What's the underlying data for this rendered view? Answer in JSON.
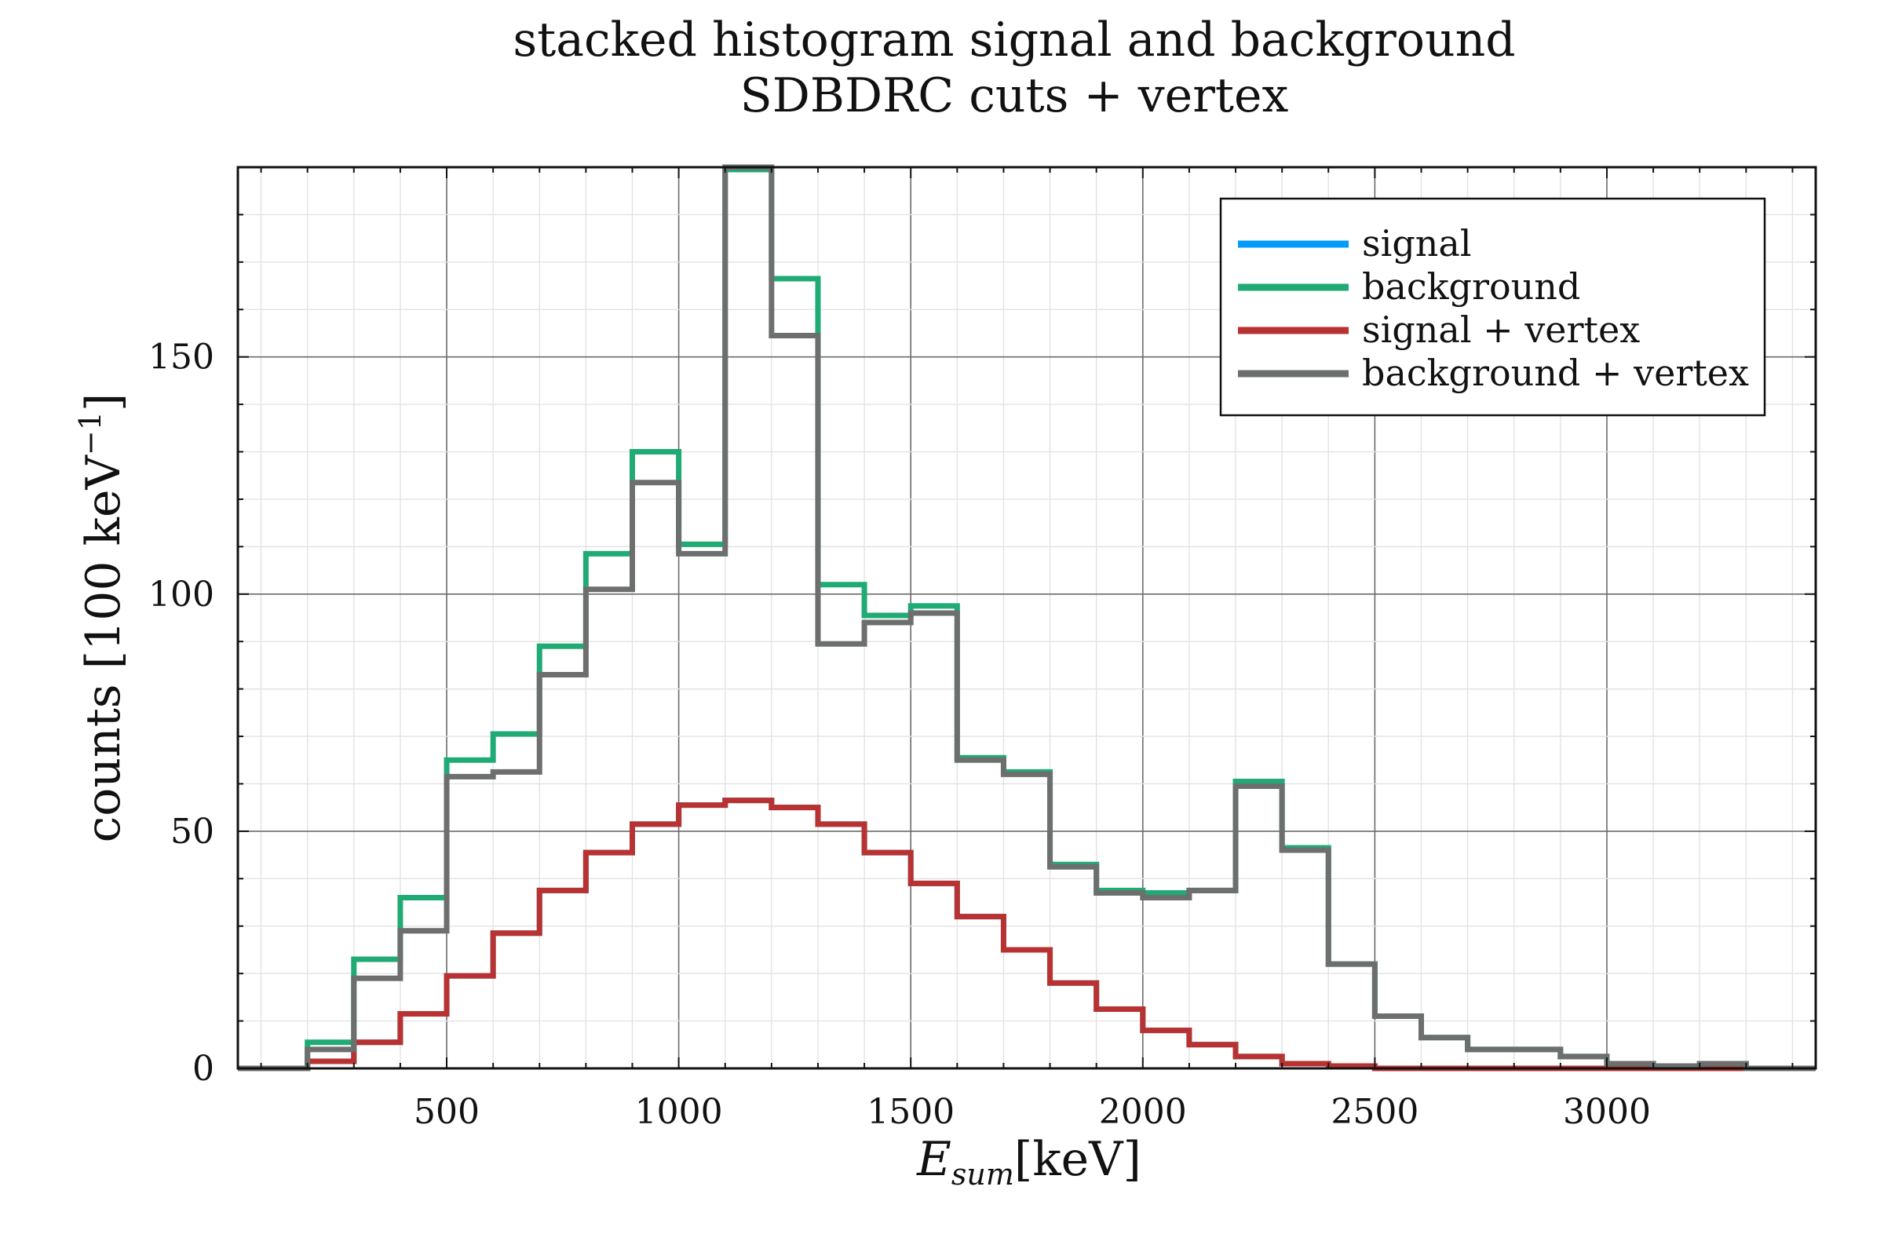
{
  "chart_data": {
    "type": "histogram-step",
    "title": [
      "stacked histogram signal and background",
      "SDBDRC cuts + vertex"
    ],
    "xlabel": {
      "symbol": "E",
      "subscript": "sum",
      "unit": "[keV]"
    },
    "ylabel": {
      "text": "counts [100 keV",
      "superscript": "−1",
      "close": "]"
    },
    "xlim": [
      50,
      3450
    ],
    "ylim": [
      0,
      190
    ],
    "xticks": [
      500,
      1000,
      1500,
      2000,
      2500,
      3000
    ],
    "yticks": [
      0,
      50,
      100,
      150
    ],
    "xtick_labels": [
      "500",
      "1000",
      "1500",
      "2000",
      "2500",
      "3000"
    ],
    "ytick_labels": [
      "0",
      "50",
      "100",
      "150"
    ],
    "x_minor_step": 100,
    "y_minor_step": 10,
    "grid": true,
    "legend_position": "top-right",
    "bin_edges": [
      50,
      100,
      200,
      300,
      400,
      500,
      600,
      700,
      800,
      900,
      1000,
      1100,
      1200,
      1300,
      1400,
      1500,
      1600,
      1700,
      1800,
      1900,
      2000,
      2100,
      2200,
      2300,
      2400,
      2500,
      2600,
      2700,
      2800,
      2900,
      3000,
      3100,
      3200,
      3300,
      3400,
      3450
    ],
    "series": [
      {
        "name": "signal",
        "color": "#009AFA",
        "values": [
          0,
          0,
          1.5,
          5.5,
          11.5,
          19.5,
          28.5,
          37.5,
          45.5,
          51.5,
          55.5,
          56.5,
          55,
          51.5,
          45.5,
          39,
          32,
          25,
          18,
          12.5,
          8,
          5,
          2.5,
          1,
          0.5,
          0,
          0,
          0,
          0,
          0,
          0,
          0,
          0,
          0,
          0
        ]
      },
      {
        "name": "background",
        "color": "#20AB75",
        "values": [
          0,
          0,
          5.5,
          23,
          36,
          65,
          70.5,
          89,
          108.5,
          130,
          110.5,
          189.5,
          166.5,
          102,
          95.5,
          97.5,
          65.5,
          62.5,
          43,
          37.5,
          37,
          37.5,
          60.5,
          46.5,
          22,
          11,
          6.5,
          4,
          4,
          2.5,
          1,
          0.5,
          1,
          0,
          0
        ]
      },
      {
        "name": "signal + vertex",
        "color": "#B83232",
        "values": [
          0,
          0,
          1.5,
          5.5,
          11.5,
          19.5,
          28.5,
          37.5,
          45.5,
          51.5,
          55.5,
          56.5,
          55,
          51.5,
          45.5,
          39,
          32,
          25,
          18,
          12.5,
          8,
          5,
          2.5,
          1,
          0.5,
          0,
          0,
          0,
          0,
          0,
          0,
          0,
          0,
          0,
          0
        ]
      },
      {
        "name": "background + vertex",
        "color": "#6C6F6E",
        "values": [
          0,
          0,
          4,
          19,
          29,
          61.5,
          62.5,
          83,
          101,
          123.5,
          108.5,
          190,
          154.5,
          89.5,
          94,
          96,
          65,
          62,
          42.5,
          37,
          36,
          37.5,
          59.5,
          46,
          22,
          11,
          6.5,
          4,
          4,
          2.5,
          1,
          0.5,
          1,
          0,
          0
        ]
      }
    ]
  }
}
